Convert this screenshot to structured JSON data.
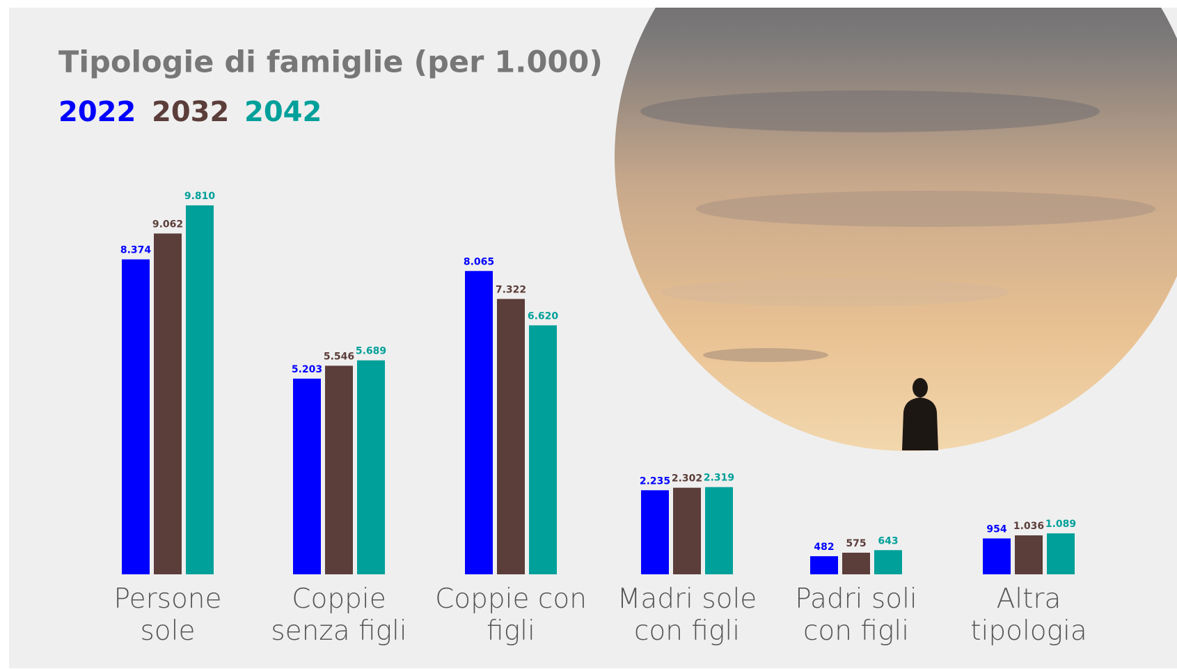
{
  "chart_data": {
    "type": "bar",
    "title": "Tipologie di famiglie (per 1.000)",
    "categories": [
      "Persone sole",
      "Coppie senza figli",
      "Coppie con figli",
      "Madri sole con figli",
      "Padri soli con figli",
      "Altra tipologia"
    ],
    "series": [
      {
        "name": "2022",
        "color": "#0000ff",
        "values": [
          8374,
          5203,
          8065,
          2235,
          482,
          954
        ],
        "value_labels": [
          "8.374",
          "5.203",
          "8.065",
          "2.235",
          "482",
          "954"
        ]
      },
      {
        "name": "2032",
        "color": "#5b3d39",
        "values": [
          9062,
          5546,
          7322,
          2302,
          575,
          1036
        ],
        "value_labels": [
          "9.062",
          "5.546",
          "7.322",
          "2.302",
          "575",
          "1.036"
        ]
      },
      {
        "name": "2042",
        "color": "#00a09a",
        "values": [
          9810,
          5689,
          6620,
          2319,
          643,
          1089
        ],
        "value_labels": [
          "9.810",
          "5.689",
          "6.620",
          "2.319",
          "643",
          "1.089"
        ]
      }
    ]
  }
}
